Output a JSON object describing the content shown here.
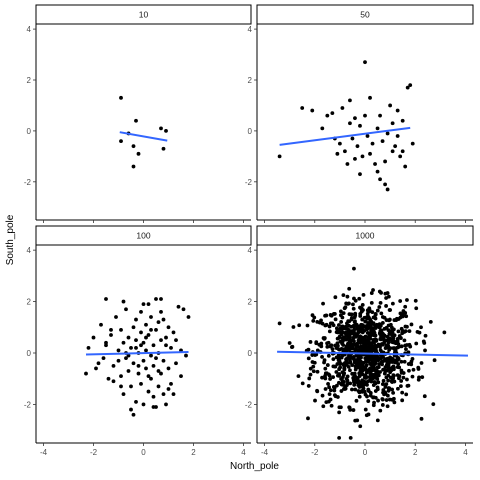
{
  "chart_data": {
    "type": "scatter",
    "xlabel": "North_pole",
    "ylabel": "South_pole",
    "xlim": [
      -4.3,
      4.3
    ],
    "ylim": [
      -3.5,
      4.2
    ],
    "x_ticks": [
      -4,
      -2,
      0,
      2,
      4
    ],
    "y_ticks": [
      -2,
      0,
      2,
      4
    ],
    "grid": false,
    "point_color": "#000000",
    "line_color": "#3366FF",
    "panels": [
      {
        "strip": "10",
        "n": 10,
        "points": [
          [
            -0.9,
            1.3
          ],
          [
            -0.9,
            -0.4
          ],
          [
            -0.4,
            -0.6
          ],
          [
            -0.3,
            0.4
          ],
          [
            -0.4,
            -1.4
          ],
          [
            -0.2,
            -0.9
          ],
          [
            0.7,
            0.1
          ],
          [
            0.9,
            0.0
          ],
          [
            0.8,
            -0.7
          ],
          [
            -0.6,
            -0.1
          ]
        ],
        "fit": {
          "x": [
            -0.95,
            0.95
          ],
          "y": [
            -0.05,
            -0.38
          ]
        }
      },
      {
        "strip": "50",
        "n": 50,
        "points": [
          [
            -3.4,
            -1.0
          ],
          [
            -2.5,
            0.9
          ],
          [
            -2.1,
            0.8
          ],
          [
            -1.5,
            0.6
          ],
          [
            -1.2,
            -0.3
          ],
          [
            -1.0,
            -0.5
          ],
          [
            -0.8,
            -0.8
          ],
          [
            -0.9,
            0.9
          ],
          [
            -0.6,
            1.2
          ],
          [
            -0.5,
            -0.3
          ],
          [
            -0.4,
            -1.1
          ],
          [
            -0.3,
            -0.6
          ],
          [
            -0.2,
            0.2
          ],
          [
            -0.1,
            -1.0
          ],
          [
            0.0,
            2.7
          ],
          [
            0.0,
            0.6
          ],
          [
            0.1,
            -0.2
          ],
          [
            0.2,
            1.3
          ],
          [
            0.3,
            -0.5
          ],
          [
            0.4,
            -1.3
          ],
          [
            0.5,
            0.1
          ],
          [
            0.6,
            -1.9
          ],
          [
            0.7,
            -0.4
          ],
          [
            0.8,
            -1.2
          ],
          [
            0.9,
            -2.3
          ],
          [
            1.0,
            1.0
          ],
          [
            1.1,
            0.3
          ],
          [
            1.2,
            -0.6
          ],
          [
            1.3,
            -0.2
          ],
          [
            1.4,
            -1.0
          ],
          [
            1.5,
            0.4
          ],
          [
            1.6,
            -1.4
          ],
          [
            1.7,
            1.7
          ],
          [
            1.8,
            1.8
          ],
          [
            1.9,
            -0.5
          ],
          [
            -1.7,
            0.1
          ],
          [
            -1.3,
            0.7
          ],
          [
            -0.7,
            -1.3
          ],
          [
            -0.4,
            0.5
          ],
          [
            0.2,
            -0.9
          ],
          [
            0.5,
            -1.6
          ],
          [
            0.8,
            -2.1
          ],
          [
            1.1,
            -0.8
          ],
          [
            1.3,
            0.8
          ],
          [
            -1.1,
            -0.9
          ],
          [
            -0.2,
            -1.7
          ],
          [
            0.6,
            0.6
          ],
          [
            0.9,
            -0.1
          ],
          [
            1.5,
            -0.8
          ],
          [
            -0.6,
            0.3
          ]
        ],
        "fit": {
          "x": [
            -3.4,
            1.8
          ],
          "y": [
            -0.55,
            0.12
          ]
        }
      },
      {
        "strip": "100",
        "n": 100,
        "points": [
          [
            -2.3,
            -0.8
          ],
          [
            -2.2,
            0.2
          ],
          [
            -2.0,
            0.6
          ],
          [
            -1.8,
            -0.4
          ],
          [
            -1.7,
            1.1
          ],
          [
            -1.6,
            -0.2
          ],
          [
            -1.5,
            0.3
          ],
          [
            -1.5,
            2.1
          ],
          [
            -1.4,
            -1.0
          ],
          [
            -1.3,
            0.7
          ],
          [
            -1.2,
            -0.5
          ],
          [
            -1.1,
            1.4
          ],
          [
            -1.0,
            0.1
          ],
          [
            -0.9,
            -0.9
          ],
          [
            -0.9,
            0.9
          ],
          [
            -0.8,
            -1.6
          ],
          [
            -0.8,
            0.4
          ],
          [
            -0.7,
            -0.2
          ],
          [
            -0.7,
            1.7
          ],
          [
            -0.6,
            -0.7
          ],
          [
            -0.6,
            0.6
          ],
          [
            -0.5,
            -1.3
          ],
          [
            -0.5,
            -2.2
          ],
          [
            -0.5,
            0.2
          ],
          [
            -0.4,
            1.0
          ],
          [
            -0.4,
            -0.4
          ],
          [
            -0.3,
            -1.9
          ],
          [
            -0.3,
            0.5
          ],
          [
            -0.3,
            1.3
          ],
          [
            -0.2,
            -0.8
          ],
          [
            -0.2,
            0.0
          ],
          [
            -0.1,
            -1.2
          ],
          [
            -0.1,
            0.8
          ],
          [
            -0.1,
            1.6
          ],
          [
            0.0,
            -0.3
          ],
          [
            0.0,
            0.4
          ],
          [
            0.0,
            -2.0
          ],
          [
            0.1,
            1.1
          ],
          [
            0.1,
            -0.6
          ],
          [
            0.1,
            0.1
          ],
          [
            0.2,
            -1.5
          ],
          [
            0.2,
            0.7
          ],
          [
            0.2,
            1.9
          ],
          [
            0.3,
            -0.1
          ],
          [
            0.3,
            -1.0
          ],
          [
            0.3,
            1.4
          ],
          [
            0.4,
            0.3
          ],
          [
            0.4,
            -1.7
          ],
          [
            0.4,
            -0.5
          ],
          [
            0.5,
            0.9
          ],
          [
            0.5,
            -2.1
          ],
          [
            0.5,
            2.1
          ],
          [
            0.6,
            0.0
          ],
          [
            0.6,
            -1.3
          ],
          [
            0.6,
            1.2
          ],
          [
            0.7,
            -0.8
          ],
          [
            0.7,
            0.5
          ],
          [
            0.7,
            2.1
          ],
          [
            0.8,
            -0.3
          ],
          [
            0.8,
            -1.6
          ],
          [
            0.9,
            0.6
          ],
          [
            0.9,
            -2.0
          ],
          [
            1.0,
            1.0
          ],
          [
            1.0,
            -0.6
          ],
          [
            1.1,
            -1.2
          ],
          [
            1.1,
            0.2
          ],
          [
            1.2,
            0.8
          ],
          [
            1.3,
            -0.4
          ],
          [
            1.4,
            1.8
          ],
          [
            1.5,
            0.1
          ],
          [
            1.6,
            1.7
          ],
          [
            1.7,
            -0.1
          ],
          [
            1.8,
            1.4
          ],
          [
            -1.2,
            -1.1
          ],
          [
            -0.8,
            2.0
          ],
          [
            -0.4,
            -2.4
          ],
          [
            0.0,
            1.9
          ],
          [
            0.4,
            -2.1
          ],
          [
            0.8,
            1.3
          ],
          [
            1.2,
            -1.6
          ],
          [
            -1.9,
            -0.6
          ],
          [
            -1.3,
            0.9
          ],
          [
            -0.6,
            -0.1
          ],
          [
            0.2,
            -0.9
          ],
          [
            0.9,
            0.3
          ],
          [
            1.5,
            -0.9
          ],
          [
            -1.0,
            -0.3
          ],
          [
            -0.3,
            0.2
          ],
          [
            0.5,
            -0.2
          ],
          [
            1.3,
            0.5
          ],
          [
            -0.7,
            0.0
          ],
          [
            0.1,
            0.6
          ],
          [
            0.6,
            -0.7
          ],
          [
            -0.2,
            -0.5
          ],
          [
            0.3,
            0.9
          ],
          [
            -1.5,
            0.4
          ],
          [
            1.0,
            -1.4
          ],
          [
            -0.9,
            -1.3
          ],
          [
            0.7,
            1.6
          ],
          [
            -0.1,
            0.3
          ]
        ],
        "fit": {
          "x": [
            -2.3,
            1.8
          ],
          "y": [
            -0.06,
            0.04
          ]
        }
      },
      {
        "strip": "1000",
        "n": 1000,
        "points": [],
        "fit": {
          "x": [
            -3.5,
            4.1
          ],
          "y": [
            0.05,
            -0.1
          ]
        }
      }
    ]
  }
}
